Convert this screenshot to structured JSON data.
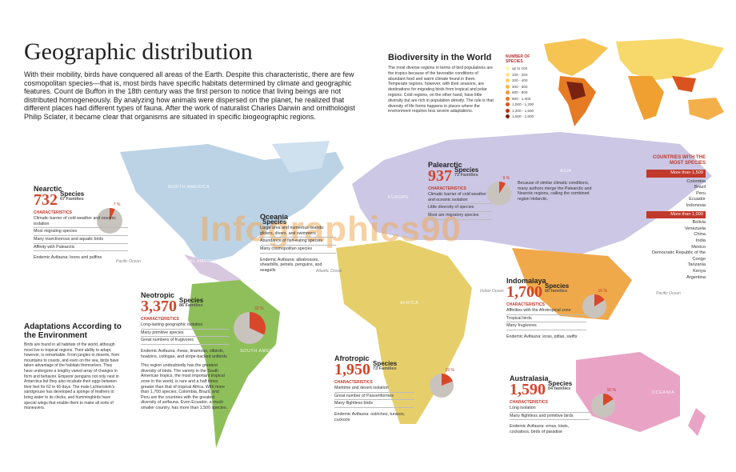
{
  "header": {
    "title": "Geographic distribution",
    "intro": "With their mobility, birds have conquered all areas of the Earth. Despite this characteristic, there are few cosmopolitan species—that is, most birds have specific habitats determined by climate and geographic features. Count de Buffon in the 18th century was the first person to notice that living beings are not distributed homogeneously. By analyzing how animals were dispersed on the planet, he realized that different places had different types of fauna. After the work of naturalist Charles Darwin and ornithologist Philip Sclater, it became clear that organisms are situated in specific biogeographic regions."
  },
  "biodiversity": {
    "title": "Biodiversity in the World",
    "text": "The most diverse regions in terms of bird populations are the tropics because of the favorable conditions of abundant food and warm climate found in them. Temperate regions, however, with their seasons, are destinations for migrating birds from tropical and polar regions. Cold regions, on the other hand, have little diversity but are rich in population density. The rule is that diversity of life forms happens in places where the environment requires less severe adaptations.",
    "legend_title": "NUMBER OF SPECIES",
    "legend": [
      "up to 100",
      "100 - 200",
      "200 - 400",
      "400 - 600",
      "600 - 800",
      "800 - 1,000",
      "1,000 - 1,200",
      "1,200 - 1,500",
      "1,500 - 1,800"
    ]
  },
  "countries": {
    "title": "COUNTRIES WITH THE MOST SPECIES",
    "groups": [
      {
        "label": "More than 1,500",
        "items": [
          "Colombia",
          "Brazil",
          "Peru",
          "Ecuador",
          "Indonesia"
        ]
      },
      {
        "label": "More than 1,000",
        "items": [
          "Bolivia",
          "Venezuela",
          "China",
          "India",
          "Mexico",
          "Democratic Republic of the Congo",
          "Tanzania",
          "Kenya",
          "Argentina"
        ]
      }
    ]
  },
  "regions": [
    {
      "name": "Nearctic",
      "species": "732",
      "species_word": "Species",
      "families": "67 Families",
      "percent": {
        "value": 7,
        "label": "7 %"
      },
      "characteristics_title": "CHARACTERISTICS",
      "characteristics": [
        "Climatic barrier of cold weather and oceanic isolation",
        "Most migrating species",
        "Many insectivorous and aquatic birds",
        "Affinity with Palearctic"
      ],
      "endemic": "Endemic Avifauna: loons and puffins"
    },
    {
      "name": "Oceania",
      "species_word": "Species",
      "characteristics": [
        "Large area and numerous islands: gliders, divers, and swimmers",
        "Abundance of fish-eating species",
        "Many cosmopolitan species"
      ],
      "endemic": "Endemic Avifauna: albatrosses, shearbills, petrels, penguins, and seagulls"
    },
    {
      "name": "Neotropic",
      "species": "3,370",
      "species_word": "Species",
      "families": "86 Families",
      "percent": {
        "value": 32,
        "label": "32 %"
      },
      "characteristics_title": "CHARACTERISTICS",
      "characteristics": [
        "Long-lasting geographic isolation",
        "Many primitive species",
        "Great numbers of frugivores"
      ],
      "endemic": "Endemic Avifauna: rheas, tinamous, oilbirds, hoatzins, cotingas, and stripe-backed antbirds",
      "note": "This region undoubtedly has the greatest diversity of birds. The variety in the South American tropics, the most important tropical zone in the world, is rare and a half times greater than that of tropical Africa. With more than 1,700 species, Colombia, Brazil, and Peru are the countries with the greatest diversity of avifauna. Even Ecuador, a much smaller country, has more than 1,500 species."
    },
    {
      "name": "Palearctic",
      "species": "937",
      "species_word": "Species",
      "families": "73 Families",
      "percent": {
        "value": 9,
        "label": "9 %"
      },
      "characteristics_title": "CHARACTERISTICS",
      "characteristics": [
        "Climatic barrier of cold weather and oceanic isolation",
        "Little diversity of species",
        "Most are migratory species"
      ],
      "note": "Because of similar climatic conditions, many authors merge the Palearctic and Nearctic regions, calling the combined region Holarctic."
    },
    {
      "name": "Afrotropic",
      "species": "1,950",
      "species_word": "Species",
      "families": "73 Families",
      "percent": {
        "value": 19,
        "label": "19 %"
      },
      "characteristics_title": "CHARACTERISTICS",
      "characteristics": [
        "Maritime and desert isolation",
        "Great number of Passeriformes",
        "Many flightless birds"
      ],
      "endemic": "Endemic Avifauna: ostriches, turacos, cuckoos"
    },
    {
      "name": "Indomalaya",
      "species": "1,700",
      "species_word": "Species",
      "families": "66 families",
      "percent": {
        "value": 16,
        "label": "16 %"
      },
      "characteristics_title": "CHARACTERISTICS",
      "characteristics": [
        "Affinities with the Afrotropical zone",
        "Tropical birds",
        "Many frugivores"
      ],
      "endemic": "Endemic Avifauna: ioras, pittas, swifts"
    },
    {
      "name": "Australasia",
      "species": "1,590",
      "species_word": "Species",
      "families": "64 families",
      "percent": {
        "value": 16,
        "label": "16 %"
      },
      "characteristics_title": "CHARACTERISTICS",
      "characteristics": [
        "Long isolation",
        "Many flightless and primitive birds"
      ],
      "endemic": "Endemic Avifauna: emus, kiwis, cockatoos, birds of paradise"
    }
  ],
  "adaptations": {
    "title": "Adaptations According to the Environment",
    "text": "Birds are found in all habitats of the world, although most live in tropical regions. Their ability to adapt, however, is remarkable. From jungles to deserts, from mountains to coasts, and even on the sea, birds have taken advantage of the habitats themselves. They have undergone a lengthy varied array of changes in form and behavior. Emperor penguins not only nest in Antarctica but they also incubate their eggs between their feet for 62 to 66 days. The male Lichtenstein's sandgrouse has developed a sponge of feathers to bring water to its chicks, and hummingbirds have special wings that enable them to make all sorts of maneuvers."
  },
  "map_labels": [
    "NORTH AMERICA",
    "CENTRAL AMERICA",
    "SOUTH AMERICA",
    "EUROPE",
    "ASIA",
    "AFRICA",
    "OCEANIA",
    "Pacific Ocean",
    "Atlantic Ocean",
    "Indian Ocean",
    "Pacific Ocean"
  ],
  "watermark": "Infographics90"
}
